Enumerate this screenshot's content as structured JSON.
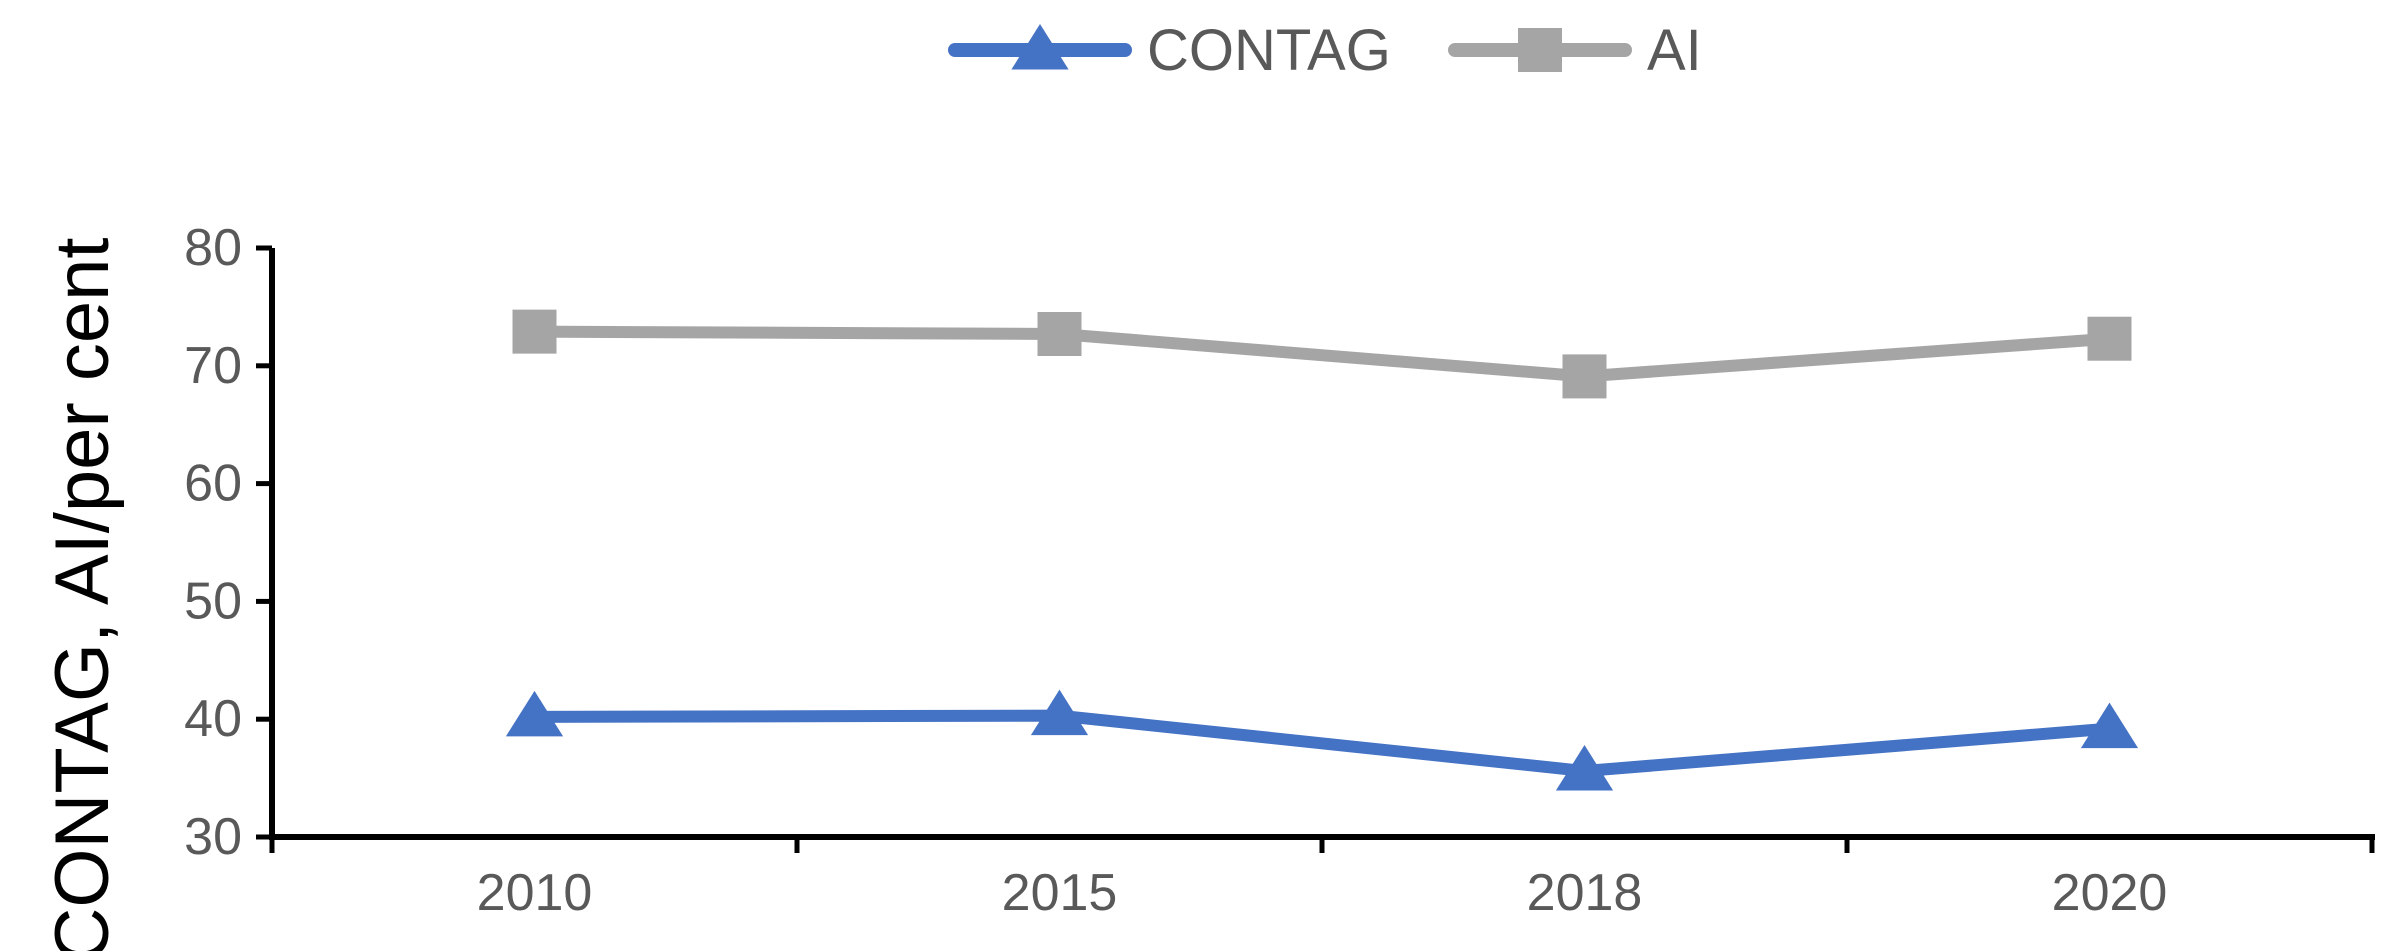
{
  "chart_data": {
    "type": "line",
    "categories": [
      "2010",
      "2015",
      "2018",
      "2020"
    ],
    "series": [
      {
        "name": "CONTAG",
        "values": [
          40.2,
          40.3,
          35.6,
          39.2
        ],
        "color": "#4472c4",
        "marker": "triangle"
      },
      {
        "name": "AI",
        "values": [
          72.9,
          72.7,
          69.1,
          72.3
        ],
        "color": "#a5a5a5",
        "marker": "square"
      }
    ],
    "ylabel": "CONTAG, AI/per cent",
    "xlabel": "",
    "ylim": [
      30,
      80
    ],
    "yticks": [
      30,
      40,
      50,
      60,
      70,
      80
    ],
    "grid": false,
    "legend_position": "top"
  }
}
